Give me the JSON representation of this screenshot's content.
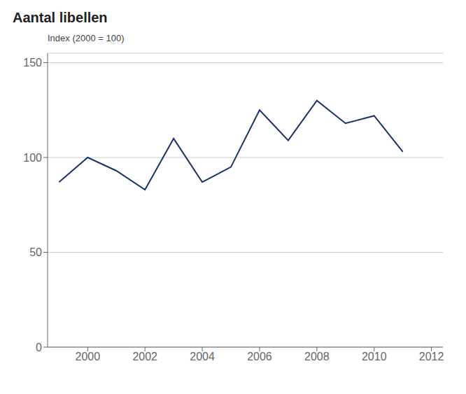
{
  "chart_data": {
    "type": "line",
    "title": "Aantal libellen",
    "ylabel": "Index (2000 = 100)",
    "x": [
      1999,
      2000,
      2001,
      2002,
      2003,
      2004,
      2005,
      2006,
      2007,
      2008,
      2009,
      2010,
      2011
    ],
    "values": [
      87,
      100,
      93,
      83,
      110,
      87,
      95,
      125,
      109,
      130,
      118,
      122,
      103
    ],
    "color": "#1a3366",
    "xlim": [
      1998.6,
      2012.4
    ],
    "ylim": [
      0,
      155
    ],
    "xticks": [
      2000,
      2002,
      2004,
      2006,
      2008,
      2010,
      2012
    ],
    "yticks": [
      0,
      50,
      100,
      150
    ],
    "grid": true
  }
}
